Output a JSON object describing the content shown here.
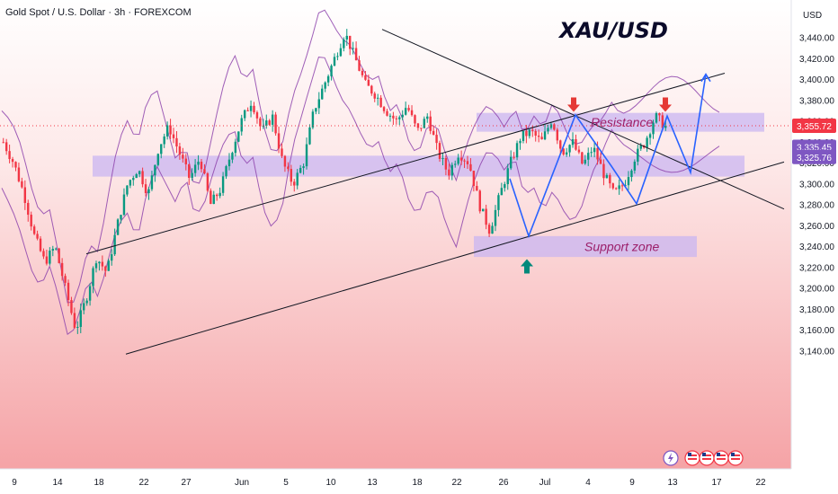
{
  "header": {
    "title": "Gold Spot / U.S. Dollar · 3h · FOREXCOM",
    "big_label": "XAU/USD"
  },
  "colors": {
    "bull": "#089981",
    "bear": "#f23645",
    "ichimoku": "#8e44ad",
    "zone": "#c9b6f2",
    "blue_path": "#2962ff",
    "trendline": "#131722",
    "arrow_down": "#e53935",
    "arrow_up": "#00897b",
    "last_price_badge": "#f23645",
    "cloud_badge": "#7e57c2"
  },
  "chart_data": {
    "type": "candlestick",
    "currency_label": "USD",
    "y_ticks": [
      3140,
      3160,
      3180,
      3200,
      3220,
      3240,
      3260,
      3280,
      3300,
      3320,
      3340,
      3360,
      3380,
      3400,
      3420,
      3440
    ],
    "x_tick_labels": [
      "9",
      "14",
      "18",
      "22",
      "27",
      "Jun",
      "5",
      "10",
      "13",
      "18",
      "22",
      "26",
      "Jul",
      "4",
      "9",
      "13",
      "17",
      "22"
    ],
    "price_badges": [
      {
        "value": "3,355.72",
        "kind": "last"
      },
      {
        "value": "3,335.45",
        "kind": "indicator"
      },
      {
        "value": "3,325.76",
        "kind": "indicator"
      }
    ],
    "annotations": {
      "resistance_label": "Resistance",
      "support_label": "Support zone"
    },
    "price_path": [
      {
        "x": 0,
        "y": 3340
      },
      {
        "x": 1,
        "y": 3320
      },
      {
        "x": 2,
        "y": 3290
      },
      {
        "x": 3,
        "y": 3250
      },
      {
        "x": 4,
        "y": 3225
      },
      {
        "x": 5,
        "y": 3240
      },
      {
        "x": 6,
        "y": 3200
      },
      {
        "x": 7,
        "y": 3160
      },
      {
        "x": 8,
        "y": 3190
      },
      {
        "x": 9,
        "y": 3230
      },
      {
        "x": 10,
        "y": 3215
      },
      {
        "x": 11,
        "y": 3260
      },
      {
        "x": 12,
        "y": 3300
      },
      {
        "x": 13,
        "y": 3315
      },
      {
        "x": 14,
        "y": 3290
      },
      {
        "x": 15,
        "y": 3335
      },
      {
        "x": 16,
        "y": 3355
      },
      {
        "x": 17,
        "y": 3330
      },
      {
        "x": 18,
        "y": 3305
      },
      {
        "x": 19,
        "y": 3325
      },
      {
        "x": 20,
        "y": 3280
      },
      {
        "x": 21,
        "y": 3295
      },
      {
        "x": 22,
        "y": 3330
      },
      {
        "x": 23,
        "y": 3360
      },
      {
        "x": 24,
        "y": 3380
      },
      {
        "x": 25,
        "y": 3350
      },
      {
        "x": 26,
        "y": 3365
      },
      {
        "x": 27,
        "y": 3320
      },
      {
        "x": 28,
        "y": 3300
      },
      {
        "x": 29,
        "y": 3320
      },
      {
        "x": 30,
        "y": 3370
      },
      {
        "x": 31,
        "y": 3395
      },
      {
        "x": 32,
        "y": 3420
      },
      {
        "x": 33,
        "y": 3445
      },
      {
        "x": 34,
        "y": 3420
      },
      {
        "x": 35,
        "y": 3395
      },
      {
        "x": 36,
        "y": 3385
      },
      {
        "x": 37,
        "y": 3370
      },
      {
        "x": 38,
        "y": 3360
      },
      {
        "x": 39,
        "y": 3375
      },
      {
        "x": 40,
        "y": 3350
      },
      {
        "x": 41,
        "y": 3365
      },
      {
        "x": 42,
        "y": 3330
      },
      {
        "x": 43,
        "y": 3310
      },
      {
        "x": 44,
        "y": 3330
      },
      {
        "x": 45,
        "y": 3320
      },
      {
        "x": 46,
        "y": 3280
      },
      {
        "x": 47,
        "y": 3255
      },
      {
        "x": 48,
        "y": 3290
      },
      {
        "x": 49,
        "y": 3320
      },
      {
        "x": 50,
        "y": 3345
      },
      {
        "x": 51,
        "y": 3350
      },
      {
        "x": 52,
        "y": 3340
      },
      {
        "x": 53,
        "y": 3362
      },
      {
        "x": 54,
        "y": 3330
      },
      {
        "x": 55,
        "y": 3340
      },
      {
        "x": 56,
        "y": 3318
      },
      {
        "x": 57,
        "y": 3335
      },
      {
        "x": 58,
        "y": 3310
      },
      {
        "x": 59,
        "y": 3290
      },
      {
        "x": 60,
        "y": 3300
      },
      {
        "x": 61,
        "y": 3325
      },
      {
        "x": 62,
        "y": 3340
      },
      {
        "x": 63,
        "y": 3365
      },
      {
        "x": 64,
        "y": 3355
      }
    ],
    "n_candles": 215
  }
}
